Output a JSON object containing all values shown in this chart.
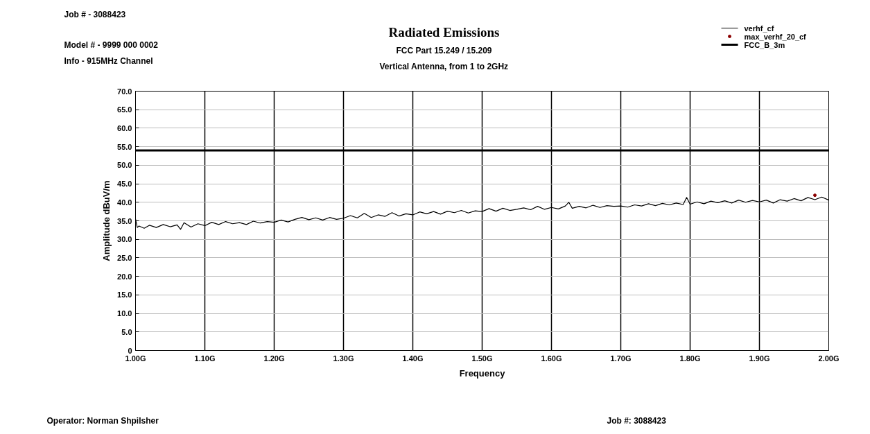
{
  "chart_data": {
    "type": "line",
    "title": "Radiated Emissions",
    "subtitle": "FCC Part 15.249 / 15.209",
    "xlabel": "Frequency",
    "ylabel": "Amplitude dBuV/m",
    "annotations": [
      "Vertical Antenna, from 1 to 2GHz",
      "Job # - 3088423",
      "Model # - 9999 000 0002",
      "Info - 915MHz Channel",
      "Operator: Norman Shpilsher",
      "Job #: 3088423"
    ],
    "series": [
      {
        "name": "verhf_cf",
        "color": "#000000",
        "line_style": "solid",
        "x": [
          1.0,
          1.0025,
          1.005,
          1.0125,
          1.02,
          1.03,
          1.04,
          1.05,
          1.06,
          1.065,
          1.07,
          1.08,
          1.09,
          1.1,
          1.11,
          1.12,
          1.13,
          1.14,
          1.15,
          1.16,
          1.17,
          1.18,
          1.19,
          1.2,
          1.21,
          1.22,
          1.23,
          1.24,
          1.25,
          1.26,
          1.27,
          1.28,
          1.29,
          1.3,
          1.31,
          1.32,
          1.33,
          1.34,
          1.35,
          1.36,
          1.37,
          1.38,
          1.39,
          1.4,
          1.41,
          1.42,
          1.43,
          1.44,
          1.45,
          1.46,
          1.47,
          1.48,
          1.49,
          1.5,
          1.51,
          1.52,
          1.53,
          1.54,
          1.55,
          1.56,
          1.57,
          1.58,
          1.59,
          1.6,
          1.61,
          1.62,
          1.625,
          1.63,
          1.64,
          1.65,
          1.66,
          1.67,
          1.68,
          1.69,
          1.7,
          1.71,
          1.72,
          1.73,
          1.74,
          1.75,
          1.76,
          1.77,
          1.78,
          1.79,
          1.795,
          1.8,
          1.81,
          1.82,
          1.83,
          1.84,
          1.85,
          1.86,
          1.87,
          1.88,
          1.89,
          1.9,
          1.91,
          1.92,
          1.93,
          1.94,
          1.95,
          1.96,
          1.97,
          1.98,
          1.99,
          2.0
        ],
        "values": [
          35.5,
          33.2,
          33.6,
          33.0,
          33.8,
          33.2,
          34.0,
          33.4,
          33.9,
          32.7,
          34.5,
          33.3,
          34.2,
          33.7,
          34.6,
          34.0,
          34.8,
          34.2,
          34.5,
          34.0,
          34.9,
          34.4,
          34.8,
          34.6,
          35.2,
          34.7,
          35.4,
          35.9,
          35.3,
          35.8,
          35.2,
          35.9,
          35.4,
          35.7,
          36.4,
          35.8,
          37.0,
          35.9,
          36.6,
          36.2,
          37.2,
          36.3,
          36.9,
          36.6,
          37.4,
          36.9,
          37.5,
          36.8,
          37.6,
          37.2,
          37.8,
          37.1,
          37.7,
          37.5,
          38.3,
          37.6,
          38.4,
          37.8,
          38.1,
          38.5,
          38.0,
          38.9,
          38.1,
          38.6,
          38.2,
          39.0,
          40.0,
          38.4,
          38.9,
          38.5,
          39.2,
          38.6,
          39.1,
          38.9,
          39.0,
          38.7,
          39.3,
          39.0,
          39.6,
          39.1,
          39.7,
          39.3,
          39.8,
          39.4,
          41.3,
          39.5,
          40.1,
          39.6,
          40.3,
          39.9,
          40.4,
          39.8,
          40.6,
          40.0,
          40.5,
          40.1,
          40.6,
          39.8,
          40.7,
          40.3,
          41.0,
          40.4,
          41.3,
          40.7,
          41.4,
          40.6
        ]
      },
      {
        "name": "max_verhf_20_cf",
        "type": "scatter",
        "color": "#8b0000",
        "marker": "circle",
        "x": [
          1.98
        ],
        "values": [
          41.9
        ]
      },
      {
        "name": "FCC_B_3m",
        "type": "line",
        "color": "#000000",
        "line_style": "solid",
        "x": [
          1.0,
          2.0
        ],
        "values": [
          54.0,
          54.0
        ]
      }
    ],
    "xlim": [
      1.0,
      2.0
    ],
    "ylim": [
      0,
      70
    ],
    "xticks": [
      {
        "value": 1.0,
        "label": "1.00G"
      },
      {
        "value": 1.1,
        "label": "1.10G"
      },
      {
        "value": 1.2,
        "label": "1.20G"
      },
      {
        "value": 1.3,
        "label": "1.30G"
      },
      {
        "value": 1.4,
        "label": "1.40G"
      },
      {
        "value": 1.5,
        "label": "1.50G"
      },
      {
        "value": 1.6,
        "label": "1.60G"
      },
      {
        "value": 1.7,
        "label": "1.70G"
      },
      {
        "value": 1.8,
        "label": "1.80G"
      },
      {
        "value": 1.9,
        "label": "1.90G"
      },
      {
        "value": 2.0,
        "label": "2.00G"
      }
    ],
    "yticks": [
      0,
      {
        "value": 5,
        "label": "5.0"
      },
      {
        "value": 10,
        "label": "10.0"
      },
      {
        "value": 15,
        "label": "15.0"
      },
      {
        "value": 20,
        "label": "20.0"
      },
      {
        "value": 25,
        "label": "25.0"
      },
      {
        "value": 30,
        "label": "30.0"
      },
      {
        "value": 35,
        "label": "35.0"
      },
      {
        "value": 40,
        "label": "40.0"
      },
      {
        "value": 45,
        "label": "45.0"
      },
      {
        "value": 50,
        "label": "50.0"
      },
      {
        "value": 55,
        "label": "55.0"
      },
      {
        "value": 60,
        "label": "60.0"
      },
      {
        "value": 65,
        "label": "65.0"
      },
      {
        "value": 70,
        "label": "70.0"
      }
    ],
    "grid": true,
    "legend": "top right"
  }
}
